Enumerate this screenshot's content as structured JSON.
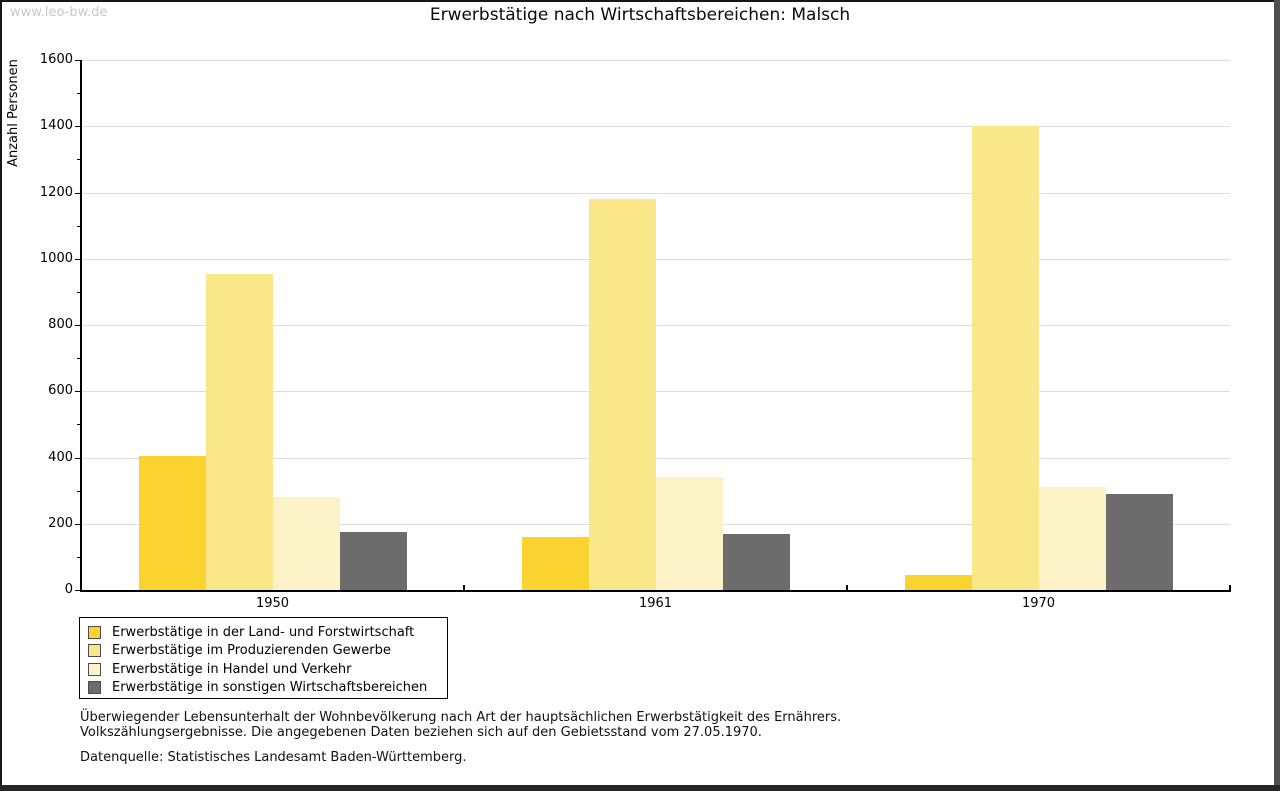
{
  "watermark": "www.leo-bw.de",
  "title": "Erwerbstätige nach Wirtschaftsbereichen: Malsch",
  "chart_data": {
    "type": "bar",
    "title": "Erwerbstätige nach Wirtschaftsbereichen: Malsch",
    "xlabel": "",
    "ylabel": "Anzahl Personen",
    "categories": [
      "1950",
      "1961",
      "1970"
    ],
    "series": [
      {
        "name": "Erwerbstätige in der Land- und Forstwirtschaft",
        "color": "#FBD331",
        "values": [
          405,
          160,
          45
        ]
      },
      {
        "name": "Erwerbstätige im Produzierenden Gewerbe",
        "color": "#FAE78A",
        "values": [
          955,
          1180,
          1400
        ]
      },
      {
        "name": "Erwerbstätige in Handel und Verkehr",
        "color": "#FBF3C7",
        "values": [
          280,
          340,
          310
        ]
      },
      {
        "name": "Erwerbstätige in sonstigen Wirtschaftsbereichen",
        "color": "#6C6C6C",
        "values": [
          175,
          170,
          290
        ]
      }
    ],
    "ylim": [
      0,
      1600
    ],
    "ytick_interval": 200,
    "ytick_minor_interval": 100,
    "grid": true,
    "gridline_color": "#dddddd",
    "legend_position": "bottom-left"
  },
  "footnote": {
    "line1": "Überwiegender Lebensunterhalt der Wohnbevölkerung nach Art der hauptsächlichen Erwerbstätigkeit des Ernährers.",
    "line2": "Volkszählungsergebnisse. Die angegebenen Daten beziehen sich auf den Gebietsstand vom 27.05.1970."
  },
  "source": "Datenquelle: Statistisches Landesamt Baden-Württemberg."
}
